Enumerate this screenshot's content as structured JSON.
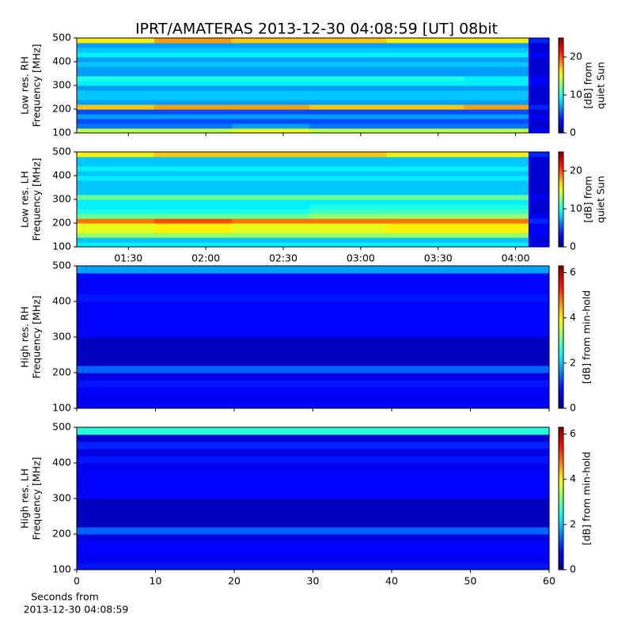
{
  "title": "IPRT/AMATERAS 2013-12-30 04:08:59 [UT]   08bit",
  "chart_data": [
    {
      "type": "heatmap",
      "ylabel": [
        "Low res. RH",
        "Frequency [MHz]"
      ],
      "colorbar_label": [
        "[dB] from",
        "quiet Sun"
      ],
      "xlim": [
        70,
        253
      ],
      "xticks": [
        90,
        120,
        150,
        180,
        210,
        240
      ],
      "ylim": [
        100,
        500
      ],
      "yticks": [
        100,
        200,
        300,
        400,
        500
      ],
      "clim": [
        0,
        25
      ],
      "cticks": [
        0,
        10,
        20
      ],
      "colormap": "jet",
      "xbins": [
        70,
        100,
        130,
        160,
        190,
        220,
        245,
        253
      ],
      "ybins": [
        100,
        120,
        140,
        160,
        180,
        200,
        220,
        240,
        260,
        280,
        300,
        320,
        340,
        360,
        380,
        400,
        420,
        440,
        460,
        480,
        500
      ],
      "z": [
        [
          14,
          14,
          15,
          14,
          14,
          14,
          3
        ],
        [
          6,
          6,
          7,
          6,
          6,
          6,
          2
        ],
        [
          5,
          5,
          5,
          5,
          5,
          5,
          2
        ],
        [
          7,
          7,
          7,
          7,
          7,
          7,
          3
        ],
        [
          5,
          5,
          5,
          5,
          5,
          5,
          2
        ],
        [
          17,
          18,
          18,
          17,
          17,
          18,
          4
        ],
        [
          7,
          7,
          7,
          7,
          7,
          7,
          2
        ],
        [
          8,
          8,
          8,
          8,
          8,
          8,
          2
        ],
        [
          8,
          8,
          8,
          8,
          8,
          8,
          2
        ],
        [
          7,
          7,
          7,
          7,
          7,
          7,
          2
        ],
        [
          9,
          9,
          9,
          9,
          9,
          9,
          3
        ],
        [
          10,
          10,
          10,
          10,
          10,
          9,
          3
        ],
        [
          7,
          7,
          7,
          7,
          7,
          7,
          2
        ],
        [
          7,
          7,
          7,
          7,
          7,
          7,
          2
        ],
        [
          8,
          8,
          8,
          8,
          8,
          8,
          2
        ],
        [
          7,
          7,
          7,
          7,
          7,
          7,
          2
        ],
        [
          9,
          9,
          9,
          9,
          9,
          9,
          3
        ],
        [
          8,
          8,
          8,
          8,
          8,
          8,
          2
        ],
        [
          7,
          7,
          7,
          7,
          7,
          7,
          2
        ],
        [
          16,
          18,
          17,
          17,
          16,
          16,
          4
        ]
      ]
    },
    {
      "type": "heatmap",
      "ylabel": [
        "Low res. LH",
        "Frequency [MHz]"
      ],
      "colorbar_label": [
        "[dB] from",
        "quiet Sun"
      ],
      "xlim": [
        70,
        253
      ],
      "xticks": [
        {
          "value": 90,
          "label": "01:30"
        },
        {
          "value": 120,
          "label": "02:00"
        },
        {
          "value": 150,
          "label": "02:30"
        },
        {
          "value": 180,
          "label": "03:00"
        },
        {
          "value": 210,
          "label": "03:30"
        },
        {
          "value": 240,
          "label": "04:00"
        }
      ],
      "ylim": [
        100,
        500
      ],
      "yticks": [
        100,
        200,
        300,
        400,
        500
      ],
      "clim": [
        0,
        25
      ],
      "cticks": [
        0,
        10,
        20
      ],
      "colormap": "jet",
      "xbins": [
        70,
        100,
        130,
        160,
        190,
        220,
        245,
        253
      ],
      "ybins": [
        100,
        120,
        140,
        160,
        180,
        200,
        220,
        240,
        260,
        280,
        300,
        320,
        340,
        360,
        380,
        400,
        420,
        440,
        460,
        480,
        500
      ],
      "z": [
        [
          9,
          9,
          9,
          9,
          9,
          9,
          3
        ],
        [
          8,
          8,
          8,
          8,
          8,
          8,
          2
        ],
        [
          13,
          13,
          13,
          13,
          13,
          13,
          3
        ],
        [
          15,
          16,
          15,
          15,
          16,
          16,
          3
        ],
        [
          15,
          16,
          15,
          15,
          16,
          16,
          3
        ],
        [
          19,
          20,
          19,
          19,
          19,
          19,
          4
        ],
        [
          12,
          12,
          12,
          13,
          13,
          13,
          3
        ],
        [
          10,
          10,
          10,
          11,
          11,
          11,
          2
        ],
        [
          9,
          9,
          9,
          10,
          10,
          10,
          2
        ],
        [
          9,
          9,
          9,
          9,
          9,
          9,
          2
        ],
        [
          12,
          12,
          12,
          12,
          12,
          12,
          3
        ],
        [
          8,
          8,
          8,
          8,
          8,
          8,
          2
        ],
        [
          8,
          8,
          8,
          8,
          8,
          8,
          2
        ],
        [
          8,
          8,
          8,
          8,
          8,
          8,
          2
        ],
        [
          9,
          9,
          9,
          9,
          9,
          9,
          2
        ],
        [
          8,
          8,
          8,
          8,
          8,
          8,
          2
        ],
        [
          9,
          9,
          9,
          9,
          9,
          9,
          2
        ],
        [
          8,
          8,
          8,
          8,
          8,
          8,
          2
        ],
        [
          8,
          8,
          8,
          8,
          8,
          8,
          2
        ],
        [
          16,
          17,
          17,
          17,
          16,
          16,
          4
        ]
      ]
    },
    {
      "type": "heatmap",
      "ylabel": [
        "High res. RH",
        "Frequency [MHz]"
      ],
      "colorbar_label": [
        "[dB] from min-hold"
      ],
      "xlim": [
        0,
        60
      ],
      "xticks": [
        0,
        10,
        20,
        30,
        40,
        50,
        60
      ],
      "ylim": [
        100,
        500
      ],
      "yticks": [
        100,
        200,
        300,
        400,
        500
      ],
      "clim": [
        0,
        6.3
      ],
      "cticks": [
        0,
        2,
        4,
        6
      ],
      "colormap": "jet",
      "xbins": [
        0,
        10,
        20,
        30,
        40,
        50,
        60
      ],
      "ybins": [
        100,
        120,
        140,
        160,
        180,
        200,
        220,
        240,
        260,
        280,
        300,
        320,
        340,
        360,
        380,
        400,
        420,
        440,
        460,
        480,
        500
      ],
      "z": [
        [
          0.8,
          0.8,
          0.8,
          0.8,
          0.8,
          0.8
        ],
        [
          0.7,
          0.7,
          0.7,
          0.7,
          0.7,
          0.7
        ],
        [
          0.8,
          0.8,
          0.8,
          0.8,
          0.8,
          0.8
        ],
        [
          0.9,
          0.9,
          0.9,
          0.9,
          0.9,
          0.9
        ],
        [
          0.6,
          0.6,
          0.6,
          0.6,
          0.6,
          0.6
        ],
        [
          1.4,
          1.4,
          1.4,
          1.4,
          1.4,
          1.4
        ],
        [
          0.4,
          0.4,
          0.4,
          0.4,
          0.4,
          0.4
        ],
        [
          0.4,
          0.4,
          0.4,
          0.4,
          0.4,
          0.4
        ],
        [
          0.4,
          0.4,
          0.4,
          0.4,
          0.4,
          0.4
        ],
        [
          0.4,
          0.4,
          0.4,
          0.4,
          0.4,
          0.4
        ],
        [
          0.8,
          0.8,
          0.8,
          0.8,
          0.8,
          0.8
        ],
        [
          0.8,
          0.8,
          0.8,
          0.8,
          0.8,
          0.8
        ],
        [
          0.8,
          0.8,
          0.8,
          0.8,
          0.8,
          0.8
        ],
        [
          0.8,
          0.8,
          0.8,
          0.8,
          0.8,
          0.8
        ],
        [
          0.8,
          0.8,
          0.8,
          0.8,
          0.8,
          0.8
        ],
        [
          0.9,
          0.9,
          0.9,
          0.9,
          0.9,
          0.9
        ],
        [
          0.8,
          0.8,
          0.8,
          0.8,
          0.8,
          0.8
        ],
        [
          0.8,
          0.8,
          0.8,
          0.8,
          0.8,
          0.8
        ],
        [
          0.8,
          0.8,
          0.8,
          0.8,
          0.8,
          0.8
        ],
        [
          1.8,
          1.8,
          1.8,
          1.8,
          1.8,
          1.8
        ]
      ]
    },
    {
      "type": "heatmap",
      "ylabel": [
        "High res. LH",
        "Frequency [MHz]"
      ],
      "colorbar_label": [
        "[dB] from min-hold"
      ],
      "xlabel": [
        "Seconds from",
        "2013-12-30 04:08:59"
      ],
      "xlim": [
        0,
        60
      ],
      "xticks": [
        0,
        10,
        20,
        30,
        40,
        50,
        60
      ],
      "ylim": [
        100,
        500
      ],
      "yticks": [
        100,
        200,
        300,
        400,
        500
      ],
      "clim": [
        0,
        6.3
      ],
      "cticks": [
        0,
        2,
        4,
        6
      ],
      "colormap": "jet",
      "xbins": [
        0,
        10,
        20,
        30,
        40,
        50,
        60
      ],
      "ybins": [
        100,
        120,
        140,
        160,
        180,
        200,
        220,
        240,
        260,
        280,
        300,
        320,
        340,
        360,
        380,
        400,
        420,
        440,
        460,
        480,
        500
      ],
      "z": [
        [
          0.9,
          0.9,
          0.9,
          0.9,
          0.9,
          0.9
        ],
        [
          0.7,
          0.7,
          0.7,
          0.7,
          0.7,
          0.7
        ],
        [
          0.8,
          0.8,
          0.8,
          0.8,
          0.8,
          0.8
        ],
        [
          0.8,
          0.8,
          0.8,
          0.8,
          0.8,
          0.8
        ],
        [
          0.6,
          0.6,
          0.6,
          0.6,
          0.6,
          0.6
        ],
        [
          1.4,
          1.4,
          1.4,
          1.4,
          1.4,
          1.4
        ],
        [
          0.4,
          0.4,
          0.4,
          0.4,
          0.4,
          0.4
        ],
        [
          0.4,
          0.4,
          0.4,
          0.4,
          0.4,
          0.4
        ],
        [
          0.4,
          0.4,
          0.4,
          0.4,
          0.4,
          0.4
        ],
        [
          0.4,
          0.4,
          0.4,
          0.4,
          0.4,
          0.4
        ],
        [
          0.8,
          0.8,
          0.8,
          0.8,
          0.8,
          0.8
        ],
        [
          0.8,
          0.8,
          0.8,
          0.8,
          0.8,
          0.8
        ],
        [
          0.8,
          0.8,
          0.8,
          0.8,
          0.8,
          0.8
        ],
        [
          0.8,
          0.8,
          0.8,
          0.8,
          0.8,
          0.8
        ],
        [
          0.7,
          0.7,
          0.7,
          0.7,
          0.7,
          0.7
        ],
        [
          0.9,
          0.9,
          0.9,
          0.9,
          0.9,
          0.9
        ],
        [
          0.6,
          0.6,
          0.6,
          0.6,
          0.6,
          0.6
        ],
        [
          1.0,
          1.0,
          1.0,
          1.0,
          1.0,
          1.0
        ],
        [
          0.5,
          0.5,
          0.5,
          0.5,
          0.5,
          0.5
        ],
        [
          2.6,
          2.6,
          2.6,
          2.6,
          2.6,
          2.6
        ]
      ]
    }
  ]
}
